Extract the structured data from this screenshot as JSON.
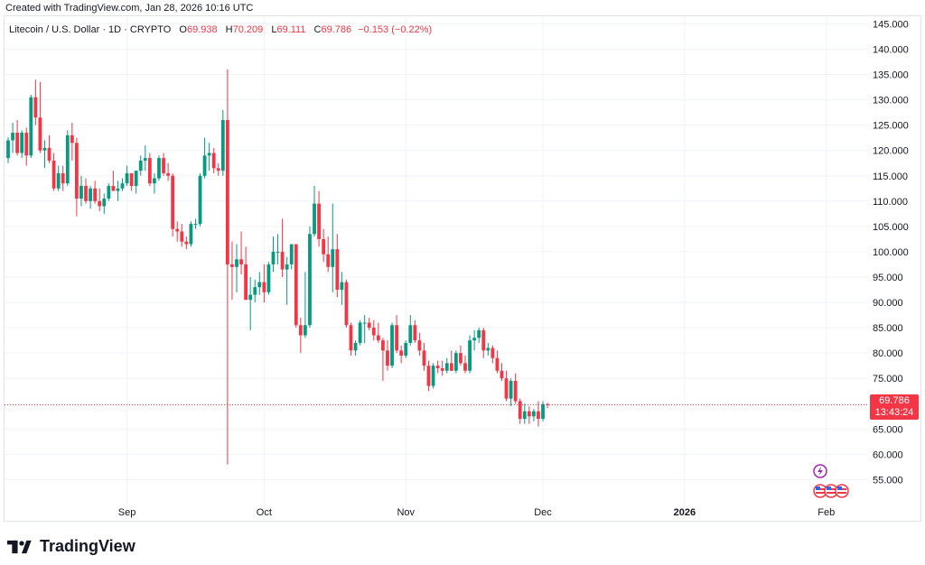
{
  "caption": {
    "created_with": "Created with TradingView.com,",
    "date": "Jan 28, 2026 10:16 UTC"
  },
  "legend": {
    "symbol": "Litecoin / U.S. Dollar · 1D · CRYPTO",
    "open_label": "O",
    "open": "69.938",
    "high_label": "H",
    "high": "70.209",
    "low_label": "L",
    "low": "69.111",
    "close_label": "C",
    "close": "69.786",
    "change": "−0.153 (−0.22%)"
  },
  "price_tag": {
    "price": "69.786",
    "countdown": "13:43:24"
  },
  "brand": {
    "name": "TradingView"
  },
  "colors": {
    "up": "#089981",
    "down": "#f23645",
    "grid": "#f0f3fa",
    "axis_text": "#131722"
  },
  "chart_data": {
    "type": "candlestick",
    "title": "Litecoin / U.S. Dollar · 1D · CRYPTO",
    "y_ticks": [
      "145.000",
      "140.000",
      "135.000",
      "130.000",
      "125.000",
      "120.000",
      "115.000",
      "110.000",
      "105.000",
      "100.000",
      "95.000",
      "90.000",
      "85.000",
      "80.000",
      "75.000",
      "70.000",
      "65.000",
      "60.000",
      "55.000"
    ],
    "ylim": [
      50.8,
      146.5
    ],
    "x_ticks": [
      {
        "label": "Sep",
        "index": 26
      },
      {
        "label": "Oct",
        "index": 56
      },
      {
        "label": "Nov",
        "index": 87
      },
      {
        "label": "Dec",
        "index": 117
      },
      {
        "label": "2026",
        "index": 148,
        "bold": true
      },
      {
        "label": "Feb",
        "index": 179
      }
    ],
    "current_price": 69.786,
    "grid": true,
    "candles": [
      [
        118.5,
        122.6,
        117.5,
        122.0
      ],
      [
        122.0,
        125.5,
        119.5,
        123.5
      ],
      [
        123.5,
        126.0,
        119.0,
        119.5
      ],
      [
        119.5,
        124.0,
        118.5,
        123.5
      ],
      [
        123.5,
        124.5,
        117.0,
        119.0
      ],
      [
        119.0,
        131.0,
        118.5,
        130.5
      ],
      [
        130.5,
        134.0,
        125.0,
        126.5
      ],
      [
        126.5,
        133.5,
        119.5,
        120.0
      ],
      [
        120.0,
        122.0,
        116.5,
        120.5
      ],
      [
        120.5,
        123.0,
        117.5,
        118.0
      ],
      [
        118.0,
        119.5,
        112.0,
        112.5
      ],
      [
        112.5,
        117.0,
        112.0,
        115.5
      ],
      [
        115.5,
        117.0,
        112.0,
        113.5
      ],
      [
        113.5,
        124.0,
        113.0,
        123.0
      ],
      [
        123.0,
        125.5,
        118.0,
        121.5
      ],
      [
        121.5,
        122.5,
        107.0,
        110.5
      ],
      [
        110.5,
        115.0,
        109.0,
        113.0
      ],
      [
        113.0,
        114.5,
        109.5,
        110.0
      ],
      [
        110.0,
        113.0,
        108.5,
        112.5
      ],
      [
        112.5,
        114.0,
        109.5,
        110.0
      ],
      [
        110.0,
        112.5,
        108.0,
        109.0
      ],
      [
        109.0,
        111.5,
        107.5,
        110.5
      ],
      [
        110.5,
        113.5,
        110.0,
        113.0
      ],
      [
        113.0,
        116.0,
        112.0,
        112.0
      ],
      [
        112.0,
        114.0,
        110.0,
        112.5
      ],
      [
        112.5,
        114.5,
        112.0,
        113.5
      ],
      [
        113.5,
        117.0,
        113.0,
        115.5
      ],
      [
        115.5,
        115.5,
        112.0,
        113.0
      ],
      [
        113.0,
        116.0,
        111.5,
        116.0
      ],
      [
        116.0,
        119.0,
        115.0,
        118.0
      ],
      [
        118.0,
        121.0,
        116.0,
        118.5
      ],
      [
        118.5,
        119.5,
        113.0,
        113.5
      ],
      [
        113.5,
        115.5,
        111.5,
        114.5
      ],
      [
        114.5,
        119.0,
        114.0,
        118.5
      ],
      [
        118.5,
        119.5,
        115.0,
        115.5
      ],
      [
        115.5,
        117.5,
        114.0,
        115.0
      ],
      [
        115.0,
        115.5,
        103.0,
        104.5
      ],
      [
        104.5,
        106.0,
        102.0,
        104.0
      ],
      [
        104.0,
        105.5,
        101.0,
        102.0
      ],
      [
        102.0,
        103.0,
        100.5,
        101.5
      ],
      [
        101.5,
        106.0,
        101.0,
        105.5
      ],
      [
        105.5,
        106.5,
        104.5,
        105.5
      ],
      [
        105.5,
        115.5,
        105.0,
        115.0
      ],
      [
        115.0,
        122.5,
        114.5,
        119.0
      ],
      [
        119.0,
        121.5,
        116.0,
        119.5
      ],
      [
        119.5,
        120.5,
        115.5,
        116.5
      ],
      [
        116.5,
        117.5,
        115.0,
        116.0
      ],
      [
        116.0,
        128.0,
        115.0,
        126.0
      ],
      [
        126.0,
        136.0,
        58.0,
        97.5
      ],
      [
        97.5,
        102.0,
        90.5,
        97.0
      ],
      [
        97.0,
        101.5,
        92.0,
        98.5
      ],
      [
        98.5,
        104.0,
        95.5,
        97.5
      ],
      [
        97.5,
        101.0,
        90.5,
        90.5
      ],
      [
        90.5,
        95.0,
        84.5,
        91.5
      ],
      [
        91.5,
        94.5,
        90.0,
        93.0
      ],
      [
        93.0,
        96.0,
        91.5,
        94.0
      ],
      [
        94.0,
        97.5,
        90.0,
        92.0
      ],
      [
        92.0,
        98.0,
        91.5,
        97.5
      ],
      [
        97.5,
        103.0,
        96.0,
        100.0
      ],
      [
        100.0,
        103.5,
        97.5,
        100.0
      ],
      [
        100.0,
        106.5,
        95.0,
        96.5
      ],
      [
        96.5,
        99.0,
        89.5,
        97.5
      ],
      [
        97.5,
        101.5,
        96.5,
        101.5
      ],
      [
        101.5,
        101.5,
        85.0,
        85.5
      ],
      [
        85.5,
        87.0,
        80.0,
        83.5
      ],
      [
        83.5,
        96.0,
        83.0,
        85.5
      ],
      [
        85.5,
        105.0,
        85.0,
        103.5
      ],
      [
        103.5,
        113.0,
        103.0,
        109.5
      ],
      [
        109.5,
        112.0,
        101.0,
        102.5
      ],
      [
        102.5,
        104.5,
        98.0,
        99.5
      ],
      [
        99.5,
        103.0,
        96.0,
        97.0
      ],
      [
        97.0,
        109.5,
        92.0,
        100.5
      ],
      [
        100.5,
        103.5,
        91.0,
        92.5
      ],
      [
        92.5,
        96.0,
        89.5,
        94.0
      ],
      [
        94.0,
        94.5,
        85.0,
        85.5
      ],
      [
        85.5,
        86.0,
        79.5,
        80.5
      ],
      [
        80.5,
        82.5,
        79.5,
        82.0
      ],
      [
        82.0,
        86.5,
        81.5,
        86.0
      ],
      [
        86.0,
        87.5,
        82.0,
        86.0
      ],
      [
        86.0,
        87.0,
        84.5,
        85.0
      ],
      [
        85.0,
        86.5,
        82.5,
        83.5
      ],
      [
        83.5,
        86.0,
        82.0,
        82.5
      ],
      [
        82.5,
        83.0,
        74.5,
        80.5
      ],
      [
        80.5,
        82.5,
        76.5,
        77.5
      ],
      [
        77.5,
        86.0,
        77.0,
        85.5
      ],
      [
        85.5,
        87.5,
        80.0,
        80.5
      ],
      [
        80.5,
        81.5,
        78.0,
        79.5
      ],
      [
        79.5,
        82.5,
        79.0,
        82.0
      ],
      [
        82.0,
        87.5,
        81.5,
        85.5
      ],
      [
        85.5,
        86.5,
        82.0,
        82.5
      ],
      [
        82.5,
        84.0,
        79.5,
        80.5
      ],
      [
        80.5,
        82.0,
        76.5,
        77.5
      ],
      [
        77.5,
        78.5,
        72.5,
        73.5
      ],
      [
        73.5,
        78.0,
        73.0,
        77.5
      ],
      [
        77.5,
        78.5,
        76.0,
        77.0
      ],
      [
        77.0,
        78.5,
        75.5,
        76.5
      ],
      [
        76.5,
        79.0,
        76.0,
        78.0
      ],
      [
        78.0,
        80.5,
        76.5,
        76.5
      ],
      [
        76.5,
        80.5,
        76.0,
        80.0
      ],
      [
        80.0,
        81.5,
        77.5,
        78.0
      ],
      [
        78.0,
        79.5,
        76.0,
        76.5
      ],
      [
        76.5,
        83.5,
        76.0,
        82.5
      ],
      [
        82.5,
        84.5,
        80.5,
        83.0
      ],
      [
        83.0,
        85.0,
        82.0,
        84.5
      ],
      [
        84.5,
        85.0,
        79.0,
        80.5
      ],
      [
        80.5,
        82.0,
        79.5,
        81.0
      ],
      [
        81.0,
        81.5,
        78.0,
        79.0
      ],
      [
        79.0,
        80.5,
        76.0,
        76.5
      ],
      [
        76.5,
        78.0,
        74.5,
        75.0
      ],
      [
        75.0,
        76.5,
        70.5,
        71.0
      ],
      [
        71.0,
        75.0,
        69.5,
        74.5
      ],
      [
        74.5,
        76.0,
        70.0,
        70.5
      ],
      [
        70.5,
        71.0,
        66.0,
        67.0
      ],
      [
        67.0,
        70.0,
        66.0,
        68.5
      ],
      [
        68.5,
        69.5,
        66.0,
        67.5
      ],
      [
        67.5,
        69.0,
        66.5,
        68.5
      ],
      [
        68.5,
        70.5,
        65.5,
        67.0
      ],
      [
        67.0,
        70.5,
        66.5,
        69.9
      ],
      [
        69.9,
        70.2,
        69.1,
        69.786
      ]
    ]
  }
}
